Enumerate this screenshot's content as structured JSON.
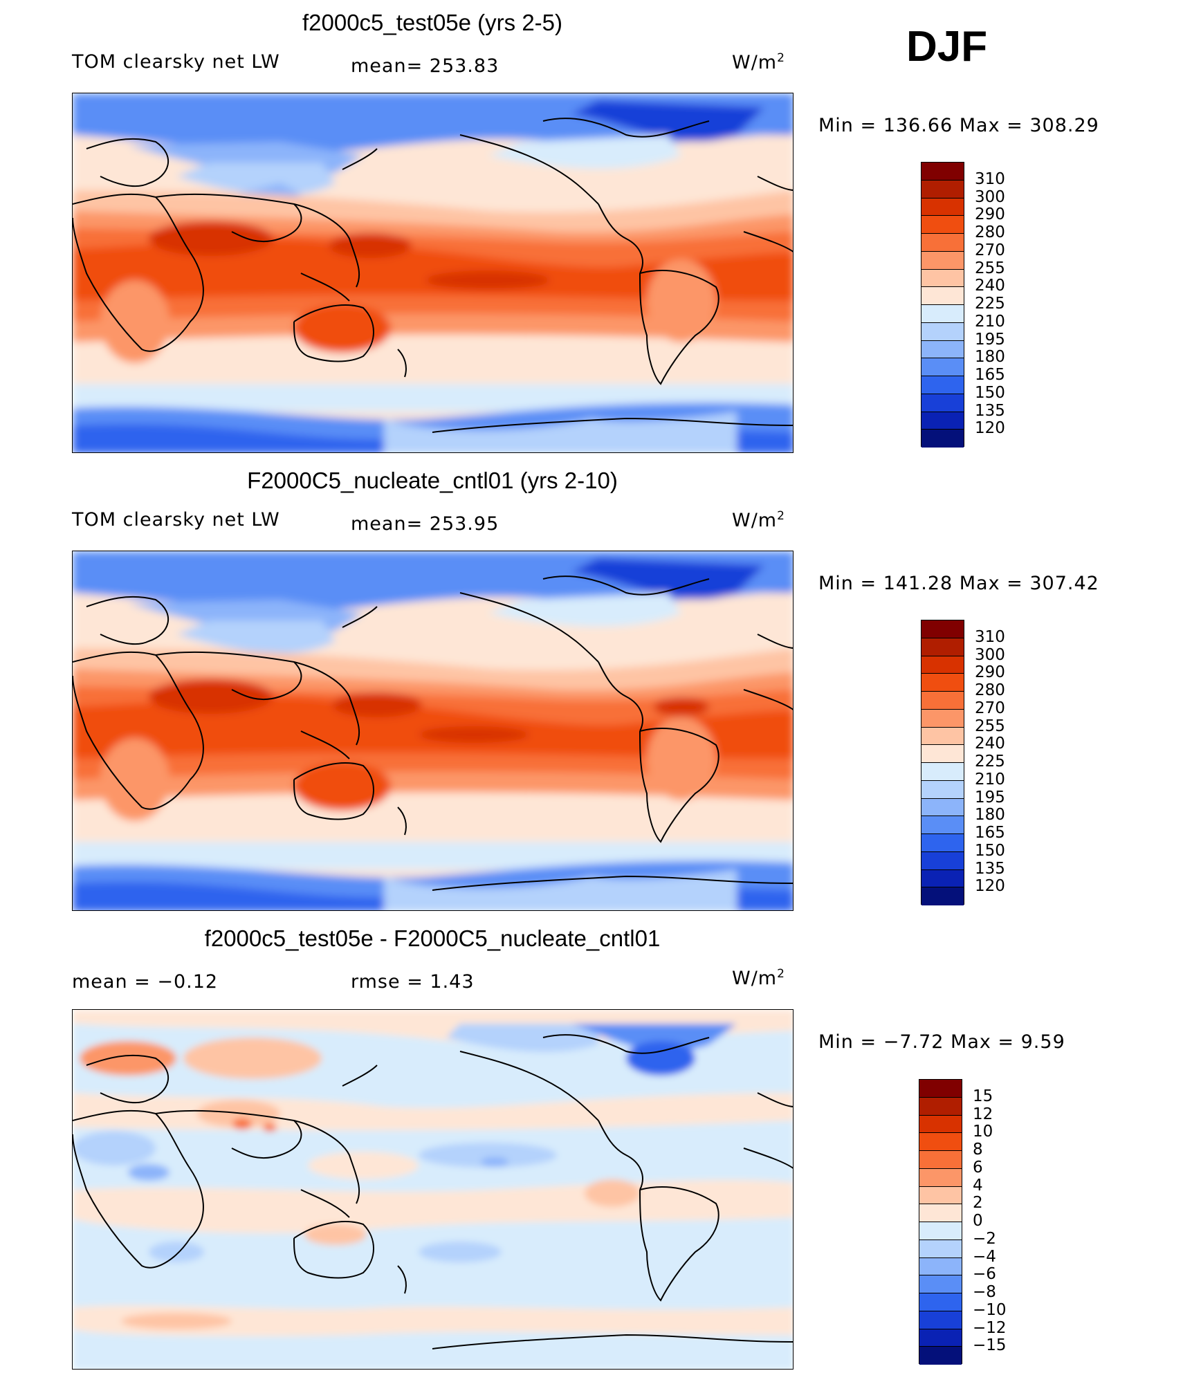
{
  "season": "DJF",
  "panels": [
    {
      "title": "f2000c5_test05e (yrs 2-5)",
      "variable": "TOM clearsky net LW",
      "stat": "mean=  253.83",
      "units_base": "W/m",
      "units_exp": "2",
      "minmax": "Min  =  136.66  Max  =  308.29"
    },
    {
      "title": "F2000C5_nucleate_cntl01 (yrs 2-10)",
      "variable": "TOM clearsky net LW",
      "stat": "mean=  253.95",
      "units_base": "W/m",
      "units_exp": "2",
      "minmax": "Min  =  141.28  Max  =  307.42"
    },
    {
      "title": "f2000c5_test05e - F2000C5_nucleate_cntl01",
      "mean_text": "mean  =    −0.12",
      "rmse_text": "rmse  =     1.43",
      "units_base": "W/m",
      "units_exp": "2",
      "minmax": "Min  =    −7.72  Max  =     9.59"
    }
  ],
  "colorbars": {
    "absolute": {
      "labels": [
        "310",
        "300",
        "290",
        "280",
        "270",
        "255",
        "240",
        "225",
        "210",
        "195",
        "180",
        "165",
        "150",
        "135",
        "120"
      ],
      "colors": [
        "#800000",
        "#b01e00",
        "#d83200",
        "#f04e10",
        "#f87038",
        "#fc9668",
        "#fec4a4",
        "#fee6d6",
        "#d8ecfc",
        "#b4d2fc",
        "#8cb4fa",
        "#5a8ef6",
        "#2e64ee",
        "#1840d8",
        "#0a22b4",
        "#04107a"
      ]
    },
    "difference": {
      "labels": [
        "15",
        "12",
        "10",
        "8",
        "6",
        "4",
        "2",
        "0",
        "−2",
        "−4",
        "−6",
        "−8",
        "−10",
        "−12",
        "−15"
      ],
      "colors": [
        "#800000",
        "#b01e00",
        "#d83200",
        "#f04e10",
        "#f87038",
        "#fc9668",
        "#fec4a4",
        "#fee6d6",
        "#d8ecfc",
        "#b4d2fc",
        "#8cb4fa",
        "#5a8ef6",
        "#2e64ee",
        "#1840d8",
        "#0a22b4",
        "#04107a"
      ]
    }
  }
}
